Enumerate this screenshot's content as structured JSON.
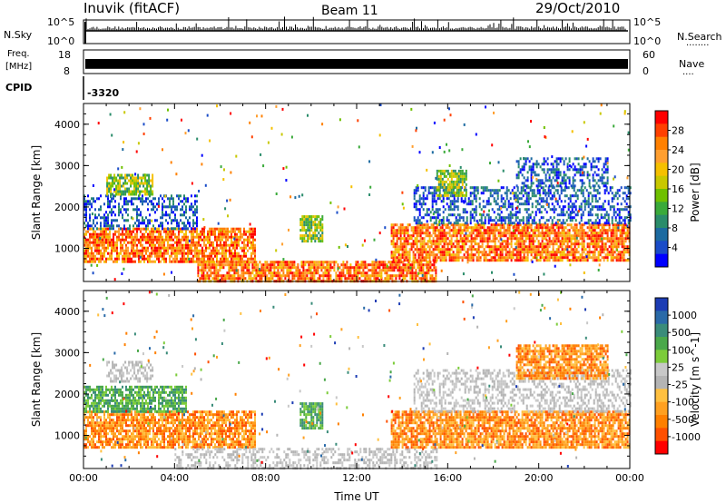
{
  "header": {
    "station": "Inuvik (fitACF)",
    "beam": "Beam 11",
    "date": "29/Oct/2010"
  },
  "nsky_panel": {
    "left_label": "N.Sky",
    "right_label": "N.Search",
    "right_dots": "........",
    "y_top": "10^5",
    "y_bottom": "10^0",
    "y_top_right": "10^5",
    "y_bottom_right": "10^0"
  },
  "freq_panel": {
    "left_label_line1": "Freq.",
    "left_label_line2": "[MHz]",
    "right_label": "Nave",
    "right_dots": "....",
    "left_ticks": [
      "18",
      "8"
    ],
    "right_ticks": [
      "60",
      "0"
    ],
    "freq_range_mhz": [
      8,
      18
    ],
    "freq_value_mhz": 11,
    "nave_range": [
      0,
      60
    ],
    "nave_value": 30
  },
  "cpid": {
    "label": "CPID",
    "value": "-3320"
  },
  "chart_data": [
    {
      "type": "heatmap",
      "xlabel": "",
      "ylabel": "Slant Range [km]",
      "y_ticks": [
        "4000",
        "3000",
        "2000",
        "1000"
      ],
      "ylim": [
        200,
        4500
      ],
      "xlim_hours": [
        0,
        24
      ],
      "colorbar": {
        "label": "Power [dB]",
        "ticks": [
          "28",
          "24",
          "20",
          "16",
          "12",
          "8",
          "4"
        ],
        "colors": [
          "#ff0000",
          "#ff4000",
          "#ff8000",
          "#ff9f30",
          "#f5c000",
          "#c8c800",
          "#6fc000",
          "#3aaa3a",
          "#2a8c6a",
          "#1c6aa0",
          "#1a4cc8",
          "#0000ff"
        ]
      },
      "bands": [
        {
          "x_start_h": 0.0,
          "x_end_h": 7.5,
          "range_km": [
            700,
            1500
          ],
          "level": "high"
        },
        {
          "x_start_h": 0.0,
          "x_end_h": 5.0,
          "range_km": [
            1500,
            2300
          ],
          "level": "low"
        },
        {
          "x_start_h": 1.0,
          "x_end_h": 3.0,
          "range_km": [
            2300,
            2800
          ],
          "level": "mid"
        },
        {
          "x_start_h": 5.0,
          "x_end_h": 15.5,
          "range_km": [
            200,
            700
          ],
          "level": "high"
        },
        {
          "x_start_h": 9.5,
          "x_end_h": 10.5,
          "range_km": [
            1200,
            1800
          ],
          "level": "mid"
        },
        {
          "x_start_h": 13.5,
          "x_end_h": 24.0,
          "range_km": [
            700,
            1600
          ],
          "level": "high"
        },
        {
          "x_start_h": 14.5,
          "x_end_h": 24.0,
          "range_km": [
            1600,
            2500
          ],
          "level": "low"
        },
        {
          "x_start_h": 15.5,
          "x_end_h": 16.8,
          "range_km": [
            2300,
            2900
          ],
          "level": "mid"
        },
        {
          "x_start_h": 19.0,
          "x_end_h": 23.0,
          "range_km": [
            2500,
            3200
          ],
          "level": "low"
        }
      ]
    },
    {
      "type": "heatmap",
      "xlabel": "Time UT",
      "ylabel": "Slant Range [km]",
      "y_ticks": [
        "4000",
        "3000",
        "2000",
        "1000"
      ],
      "ylim": [
        200,
        4500
      ],
      "xlim_hours": [
        0,
        24
      ],
      "x_ticks": [
        "00:00",
        "04:00",
        "08:00",
        "12:00",
        "16:00",
        "20:00",
        "00:00"
      ],
      "colorbar": {
        "label": "Velocity [m s^-1]",
        "ticks": [
          "1000",
          "500",
          "100",
          "25",
          "-25",
          "-100",
          "-500",
          "-1000"
        ],
        "colors": [
          "#1c3cb4",
          "#2a6aa8",
          "#3a8c7a",
          "#4aa84a",
          "#7ccc3a",
          "#c8c8c8",
          "#b4b4b4",
          "#ffc040",
          "#ffa020",
          "#ff8000",
          "#ff5000",
          "#ff0000"
        ]
      },
      "bands": [
        {
          "x_start_h": 0.0,
          "x_end_h": 7.5,
          "range_km": [
            700,
            1600
          ],
          "level": "neg"
        },
        {
          "x_start_h": 0.0,
          "x_end_h": 4.5,
          "range_km": [
            1600,
            2200
          ],
          "level": "pos"
        },
        {
          "x_start_h": 1.0,
          "x_end_h": 3.0,
          "range_km": [
            2300,
            2800
          ],
          "level": "gray"
        },
        {
          "x_start_h": 4.0,
          "x_end_h": 15.5,
          "range_km": [
            200,
            700
          ],
          "level": "gray"
        },
        {
          "x_start_h": 9.5,
          "x_end_h": 10.5,
          "range_km": [
            1200,
            1800
          ],
          "level": "pos"
        },
        {
          "x_start_h": 13.5,
          "x_end_h": 24.0,
          "range_km": [
            700,
            1600
          ],
          "level": "neg"
        },
        {
          "x_start_h": 14.5,
          "x_end_h": 24.0,
          "range_km": [
            1600,
            2600
          ],
          "level": "gray"
        },
        {
          "x_start_h": 19.0,
          "x_end_h": 23.0,
          "range_km": [
            2400,
            3200
          ],
          "level": "neg"
        }
      ]
    }
  ]
}
